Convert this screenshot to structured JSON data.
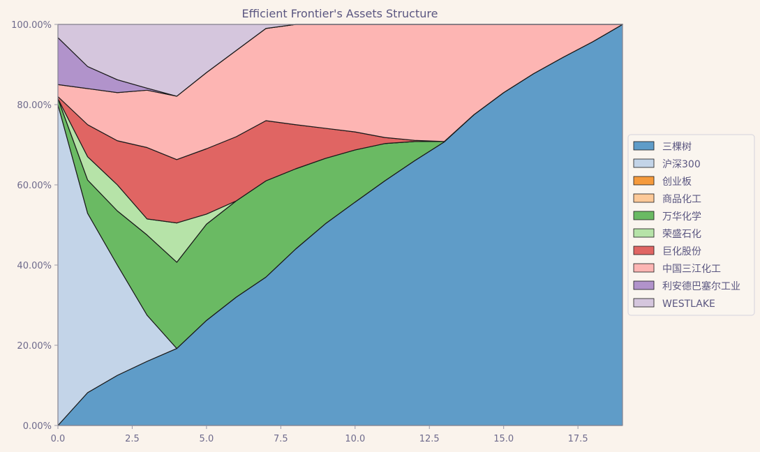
{
  "chart_data": {
    "type": "area",
    "stacked": true,
    "normalized": true,
    "title": "Efficient Frontier's Assets Structure",
    "xlabel": "",
    "ylabel": "",
    "xlim": [
      0,
      19
    ],
    "ylim": [
      0,
      1
    ],
    "x_ticks": [
      0,
      2.5,
      5,
      7.5,
      10,
      12.5,
      15,
      17.5
    ],
    "x_tick_labels": [
      "0.0",
      "2.5",
      "5.0",
      "7.5",
      "10.0",
      "12.5",
      "15.0",
      "17.5"
    ],
    "y_ticks": [
      0,
      0.2,
      0.4,
      0.6,
      0.8,
      1.0
    ],
    "y_tick_labels": [
      "0.00%",
      "20.00%",
      "40.00%",
      "60.00%",
      "80.00%",
      "100.00%"
    ],
    "grid": false,
    "legend_position": "right",
    "x": [
      0,
      1,
      2,
      3,
      4,
      5,
      6,
      7,
      8,
      9,
      10,
      11,
      12,
      13,
      14,
      15,
      16,
      17,
      18,
      19
    ],
    "series": [
      {
        "name": "三棵树",
        "color": "#5f9cc8",
        "values": [
          0.0,
          0.082,
          0.125,
          0.16,
          0.192,
          0.262,
          0.32,
          0.37,
          0.44,
          0.503,
          0.557,
          0.61,
          0.66,
          0.707,
          0.775,
          0.83,
          0.877,
          0.918,
          0.957,
          1.0
        ]
      },
      {
        "name": "沪深300",
        "color": "#c3d4e8",
        "values": [
          0.8,
          0.447,
          0.275,
          0.115,
          0.0,
          0.0,
          0.0,
          0.0,
          0.0,
          0.0,
          0.0,
          0.0,
          0.0,
          0.0,
          0.0,
          0.0,
          0.0,
          0.0,
          0.0,
          0.0
        ]
      },
      {
        "name": "创业板",
        "color": "#f59a3c",
        "values": [
          0,
          0,
          0,
          0,
          0,
          0,
          0,
          0,
          0,
          0,
          0,
          0,
          0,
          0,
          0,
          0,
          0,
          0,
          0,
          0
        ]
      },
      {
        "name": "商品化工",
        "color": "#fdc998",
        "values": [
          0,
          0,
          0,
          0,
          0,
          0,
          0,
          0,
          0,
          0,
          0,
          0,
          0,
          0,
          0,
          0,
          0,
          0,
          0,
          0
        ]
      },
      {
        "name": "万华化学",
        "color": "#6aba63",
        "values": [
          0.015,
          0.083,
          0.135,
          0.2,
          0.215,
          0.24,
          0.24,
          0.24,
          0.2,
          0.163,
          0.13,
          0.093,
          0.048,
          0.001,
          0,
          0,
          0,
          0,
          0,
          0
        ]
      },
      {
        "name": "荣盛石化",
        "color": "#b6e3a8",
        "values": [
          0.0,
          0.058,
          0.065,
          0.04,
          0.098,
          0.025,
          0.0,
          0.0,
          0.0,
          0.0,
          0.0,
          0.0,
          0.0,
          0.0,
          0,
          0,
          0,
          0,
          0,
          0
        ]
      },
      {
        "name": "巨化股份",
        "color": "#e06563",
        "values": [
          0.005,
          0.08,
          0.11,
          0.178,
          0.158,
          0.163,
          0.16,
          0.15,
          0.11,
          0.075,
          0.045,
          0.015,
          0.003,
          0.0,
          0,
          0,
          0,
          0,
          0,
          0
        ]
      },
      {
        "name": "中国三江化工",
        "color": "#fdb5b3",
        "values": [
          0.03,
          0.09,
          0.12,
          0.143,
          0.158,
          0.19,
          0.215,
          0.23,
          0.25,
          0.259,
          0.268,
          0.282,
          0.289,
          0.292,
          0.225,
          0.17,
          0.123,
          0.082,
          0.043,
          0.0
        ]
      },
      {
        "name": "利安德巴塞尔工业",
        "color": "#b193cb",
        "values": [
          0.117,
          0.055,
          0.032,
          0.005,
          0.0,
          0,
          0,
          0,
          0,
          0,
          0,
          0,
          0,
          0,
          0,
          0,
          0,
          0,
          0,
          0
        ]
      },
      {
        "name": "WESTLAKE",
        "color": "#d5c6dd",
        "values": [
          0.033,
          0.105,
          0.138,
          0.159,
          0.179,
          0.12,
          0.065,
          0.01,
          0.0,
          0,
          0,
          0,
          0,
          0,
          0,
          0,
          0,
          0,
          0,
          0
        ]
      }
    ]
  }
}
